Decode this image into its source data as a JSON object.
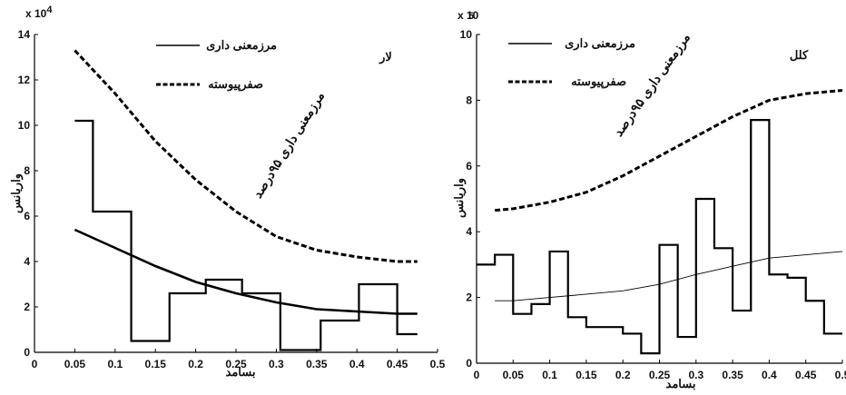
{
  "chart_data": [
    {
      "type": "line",
      "title": "لار",
      "xlabel": "بسامد",
      "ylabel": "واریانس",
      "y_multiplier": "x 10",
      "y_multiplier_exp": "4",
      "xlim": [
        0,
        0.5
      ],
      "ylim": [
        0,
        14
      ],
      "x_ticks": [
        0,
        0.05,
        0.1,
        0.15,
        0.2,
        0.25,
        0.3,
        0.35,
        0.4,
        0.45,
        0.5
      ],
      "x_tick_labels": [
        "0",
        "0.05",
        "0.1",
        "0.15",
        "0.2",
        "0.25",
        "0.3",
        "0.35",
        "0.4",
        "0.45",
        "0.5"
      ],
      "y_ticks": [
        0,
        2,
        4,
        6,
        8,
        10,
        12,
        14
      ],
      "y_tick_labels": [
        "0",
        "2",
        "4",
        "6",
        "8",
        "10",
        "12",
        "14"
      ],
      "legend": {
        "placement": "top-center",
        "entries": [
          {
            "label": "مرزمعنی داری",
            "style": "solid"
          },
          {
            "label": "صفرپیوسته",
            "style": "dashed"
          }
        ]
      },
      "annotation": "مرزمعنی داری ۹۵درصد",
      "series": [
        {
          "style": "step",
          "x": [
            0.05,
            0.095,
            0.145,
            0.19,
            0.235,
            0.28,
            0.33,
            0.38,
            0.425,
            0.475
          ],
          "values": [
            10.2,
            6.2,
            0.5,
            2.6,
            3.2,
            2.6,
            0.1,
            1.4,
            3.0,
            0.8
          ]
        },
        {
          "style": "dashed",
          "x": [
            0.05,
            0.1,
            0.15,
            0.2,
            0.25,
            0.3,
            0.35,
            0.4,
            0.45,
            0.475
          ],
          "values": [
            13.3,
            11.4,
            9.3,
            7.6,
            6.2,
            5.1,
            4.5,
            4.2,
            4.0,
            4.0
          ]
        },
        {
          "style": "smooth",
          "x": [
            0.05,
            0.1,
            0.15,
            0.2,
            0.25,
            0.3,
            0.35,
            0.4,
            0.45,
            0.475
          ],
          "values": [
            5.4,
            4.6,
            3.8,
            3.1,
            2.6,
            2.2,
            1.9,
            1.8,
            1.7,
            1.7
          ]
        }
      ]
    },
    {
      "type": "line",
      "title": "کلل",
      "xlabel": "بسامد",
      "ylabel": "واریانس",
      "y_multiplier": "x 10",
      "y_multiplier_exp": "5",
      "xlim": [
        0,
        0.5
      ],
      "ylim": [
        0,
        10
      ],
      "x_ticks": [
        0,
        0.05,
        0.1,
        0.15,
        0.2,
        0.25,
        0.3,
        0.35,
        0.4,
        0.45,
        0.5
      ],
      "x_tick_labels": [
        "0",
        "0.05",
        "0.1",
        "0.15",
        "0.2",
        "0.25",
        "0.3",
        "0.35",
        "0.4",
        "0.45",
        "0.5"
      ],
      "y_ticks": [
        0,
        2,
        4,
        6,
        8,
        10
      ],
      "y_tick_labels": [
        "0",
        "2",
        "4",
        "6",
        "8",
        "10"
      ],
      "legend": {
        "placement": "top-center",
        "entries": [
          {
            "label": "مرزمعنی داری",
            "style": "solid"
          },
          {
            "label": "صفرپیوسته",
            "style": "dashed"
          }
        ]
      },
      "annotation": "مرزمعنی داری ۹۵درصد",
      "series": [
        {
          "style": "step",
          "x": [
            0.0125,
            0.0375,
            0.0625,
            0.0875,
            0.1125,
            0.1375,
            0.1625,
            0.1875,
            0.2125,
            0.2375,
            0.2625,
            0.2875,
            0.3125,
            0.3375,
            0.3625,
            0.3875,
            0.4125,
            0.4375,
            0.4625,
            0.4875
          ],
          "values": [
            3.0,
            3.3,
            1.5,
            1.8,
            3.4,
            1.4,
            1.1,
            1.1,
            0.9,
            0.3,
            3.6,
            0.8,
            5.0,
            3.5,
            1.6,
            7.4,
            2.7,
            2.6,
            1.9,
            0.9
          ]
        },
        {
          "style": "dashed",
          "x": [
            0.025,
            0.05,
            0.1,
            0.15,
            0.2,
            0.25,
            0.3,
            0.35,
            0.4,
            0.45,
            0.5
          ],
          "values": [
            4.65,
            4.7,
            4.9,
            5.2,
            5.7,
            6.3,
            6.9,
            7.5,
            8.0,
            8.2,
            8.3
          ]
        },
        {
          "style": "thin",
          "x": [
            0.025,
            0.05,
            0.1,
            0.15,
            0.2,
            0.25,
            0.3,
            0.35,
            0.4,
            0.45,
            0.5
          ],
          "values": [
            1.9,
            1.9,
            2.0,
            2.1,
            2.2,
            2.4,
            2.7,
            2.95,
            3.2,
            3.3,
            3.4
          ]
        }
      ]
    }
  ]
}
